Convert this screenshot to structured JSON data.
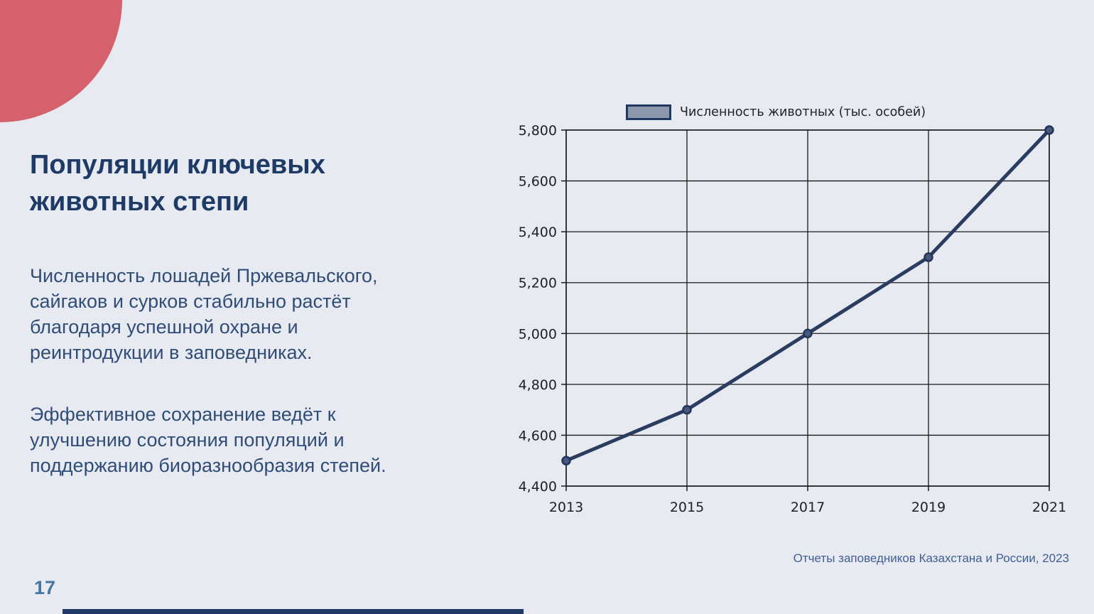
{
  "slide": {
    "page_number": "17",
    "title": "Популяции ключевых\nживотных степи",
    "paragraph1": "Численность лошадей Пржевальского,\nсайгаков и сурков стабильно растёт\nблагодаря успешной охране и\nреинтродукции в заповедниках.",
    "paragraph2": "Эффективное сохранение ведёт к\nулучшению состояния популяций и\nподдержанию биоразнообразия степей.",
    "source": "Отчеты заповедников Казахстана и России, 2023"
  },
  "colors": {
    "background": "#e8eaf1",
    "title_text": "#1e3a66",
    "body_text": "#2f4d77",
    "accent_pink": "#d5616c",
    "accent_navy": "#1f3864",
    "page_number": "#45749e",
    "source_text": "#3f5f92",
    "chart_line": "#2a3c5f",
    "marker_fill": "#46597c",
    "marker_stroke": "#22345a",
    "chart_grid": "#1a1a1a",
    "tick_text": "#1f1f28",
    "legend_swatch_fill": "#8d97ac"
  },
  "chart_data": {
    "type": "line",
    "x": [
      2013,
      2015,
      2017,
      2019,
      2021
    ],
    "series": [
      {
        "name": "Численность животных (тыс. особей)",
        "values": [
          4500,
          4700,
          5000,
          5300,
          5800
        ]
      }
    ],
    "legend_label": "Численность животных (тыс. особей)",
    "legend_position": "top",
    "title": "",
    "xlabel": "",
    "ylabel": "",
    "ylim": [
      4400,
      5800
    ],
    "ytick_step": 200,
    "grid": true
  }
}
